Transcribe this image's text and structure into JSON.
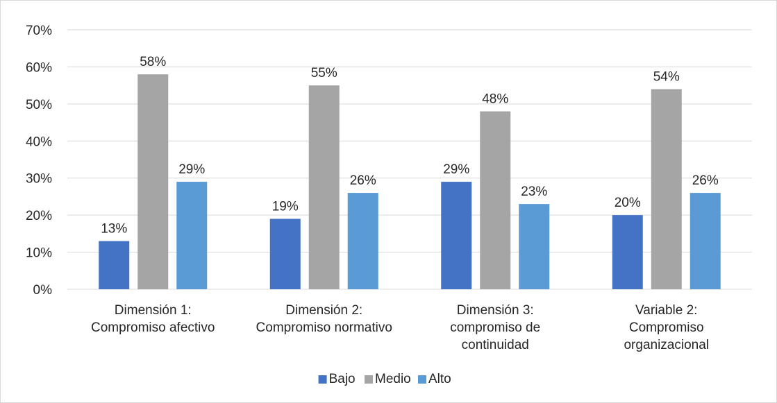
{
  "chart_data": {
    "type": "bar",
    "categories": [
      [
        "Dimensión 1:",
        "Compromiso afectivo"
      ],
      [
        "Dimensión 2:",
        "Compromiso normativo"
      ],
      [
        "Dimensión 3:",
        "compromiso de",
        "continuidad"
      ],
      [
        "Variable 2:",
        "Compromiso",
        "organizacional"
      ]
    ],
    "series": [
      {
        "name": "Bajo",
        "color": "#4472c4",
        "values": [
          13,
          19,
          29,
          20
        ],
        "labels": [
          "13%",
          "19%",
          "29%",
          "20%"
        ]
      },
      {
        "name": "Medio",
        "color": "#a5a5a5",
        "values": [
          58,
          55,
          48,
          54
        ],
        "labels": [
          "58%",
          "55%",
          "48%",
          "54%"
        ]
      },
      {
        "name": "Alto",
        "color": "#5b9bd5",
        "values": [
          29,
          26,
          23,
          26
        ],
        "labels": [
          "29%",
          "26%",
          "23%",
          "26%"
        ]
      }
    ],
    "title": "",
    "xlabel": "",
    "ylabel": "",
    "ylim": [
      0,
      70
    ],
    "yticks": [
      0,
      10,
      20,
      30,
      40,
      50,
      60,
      70
    ],
    "ytick_labels": [
      "0%",
      "10%",
      "20%",
      "30%",
      "40%",
      "50%",
      "60%",
      "70%"
    ],
    "grid": true,
    "gridline_color": "#d9d9d9",
    "legend_position": "bottom"
  }
}
